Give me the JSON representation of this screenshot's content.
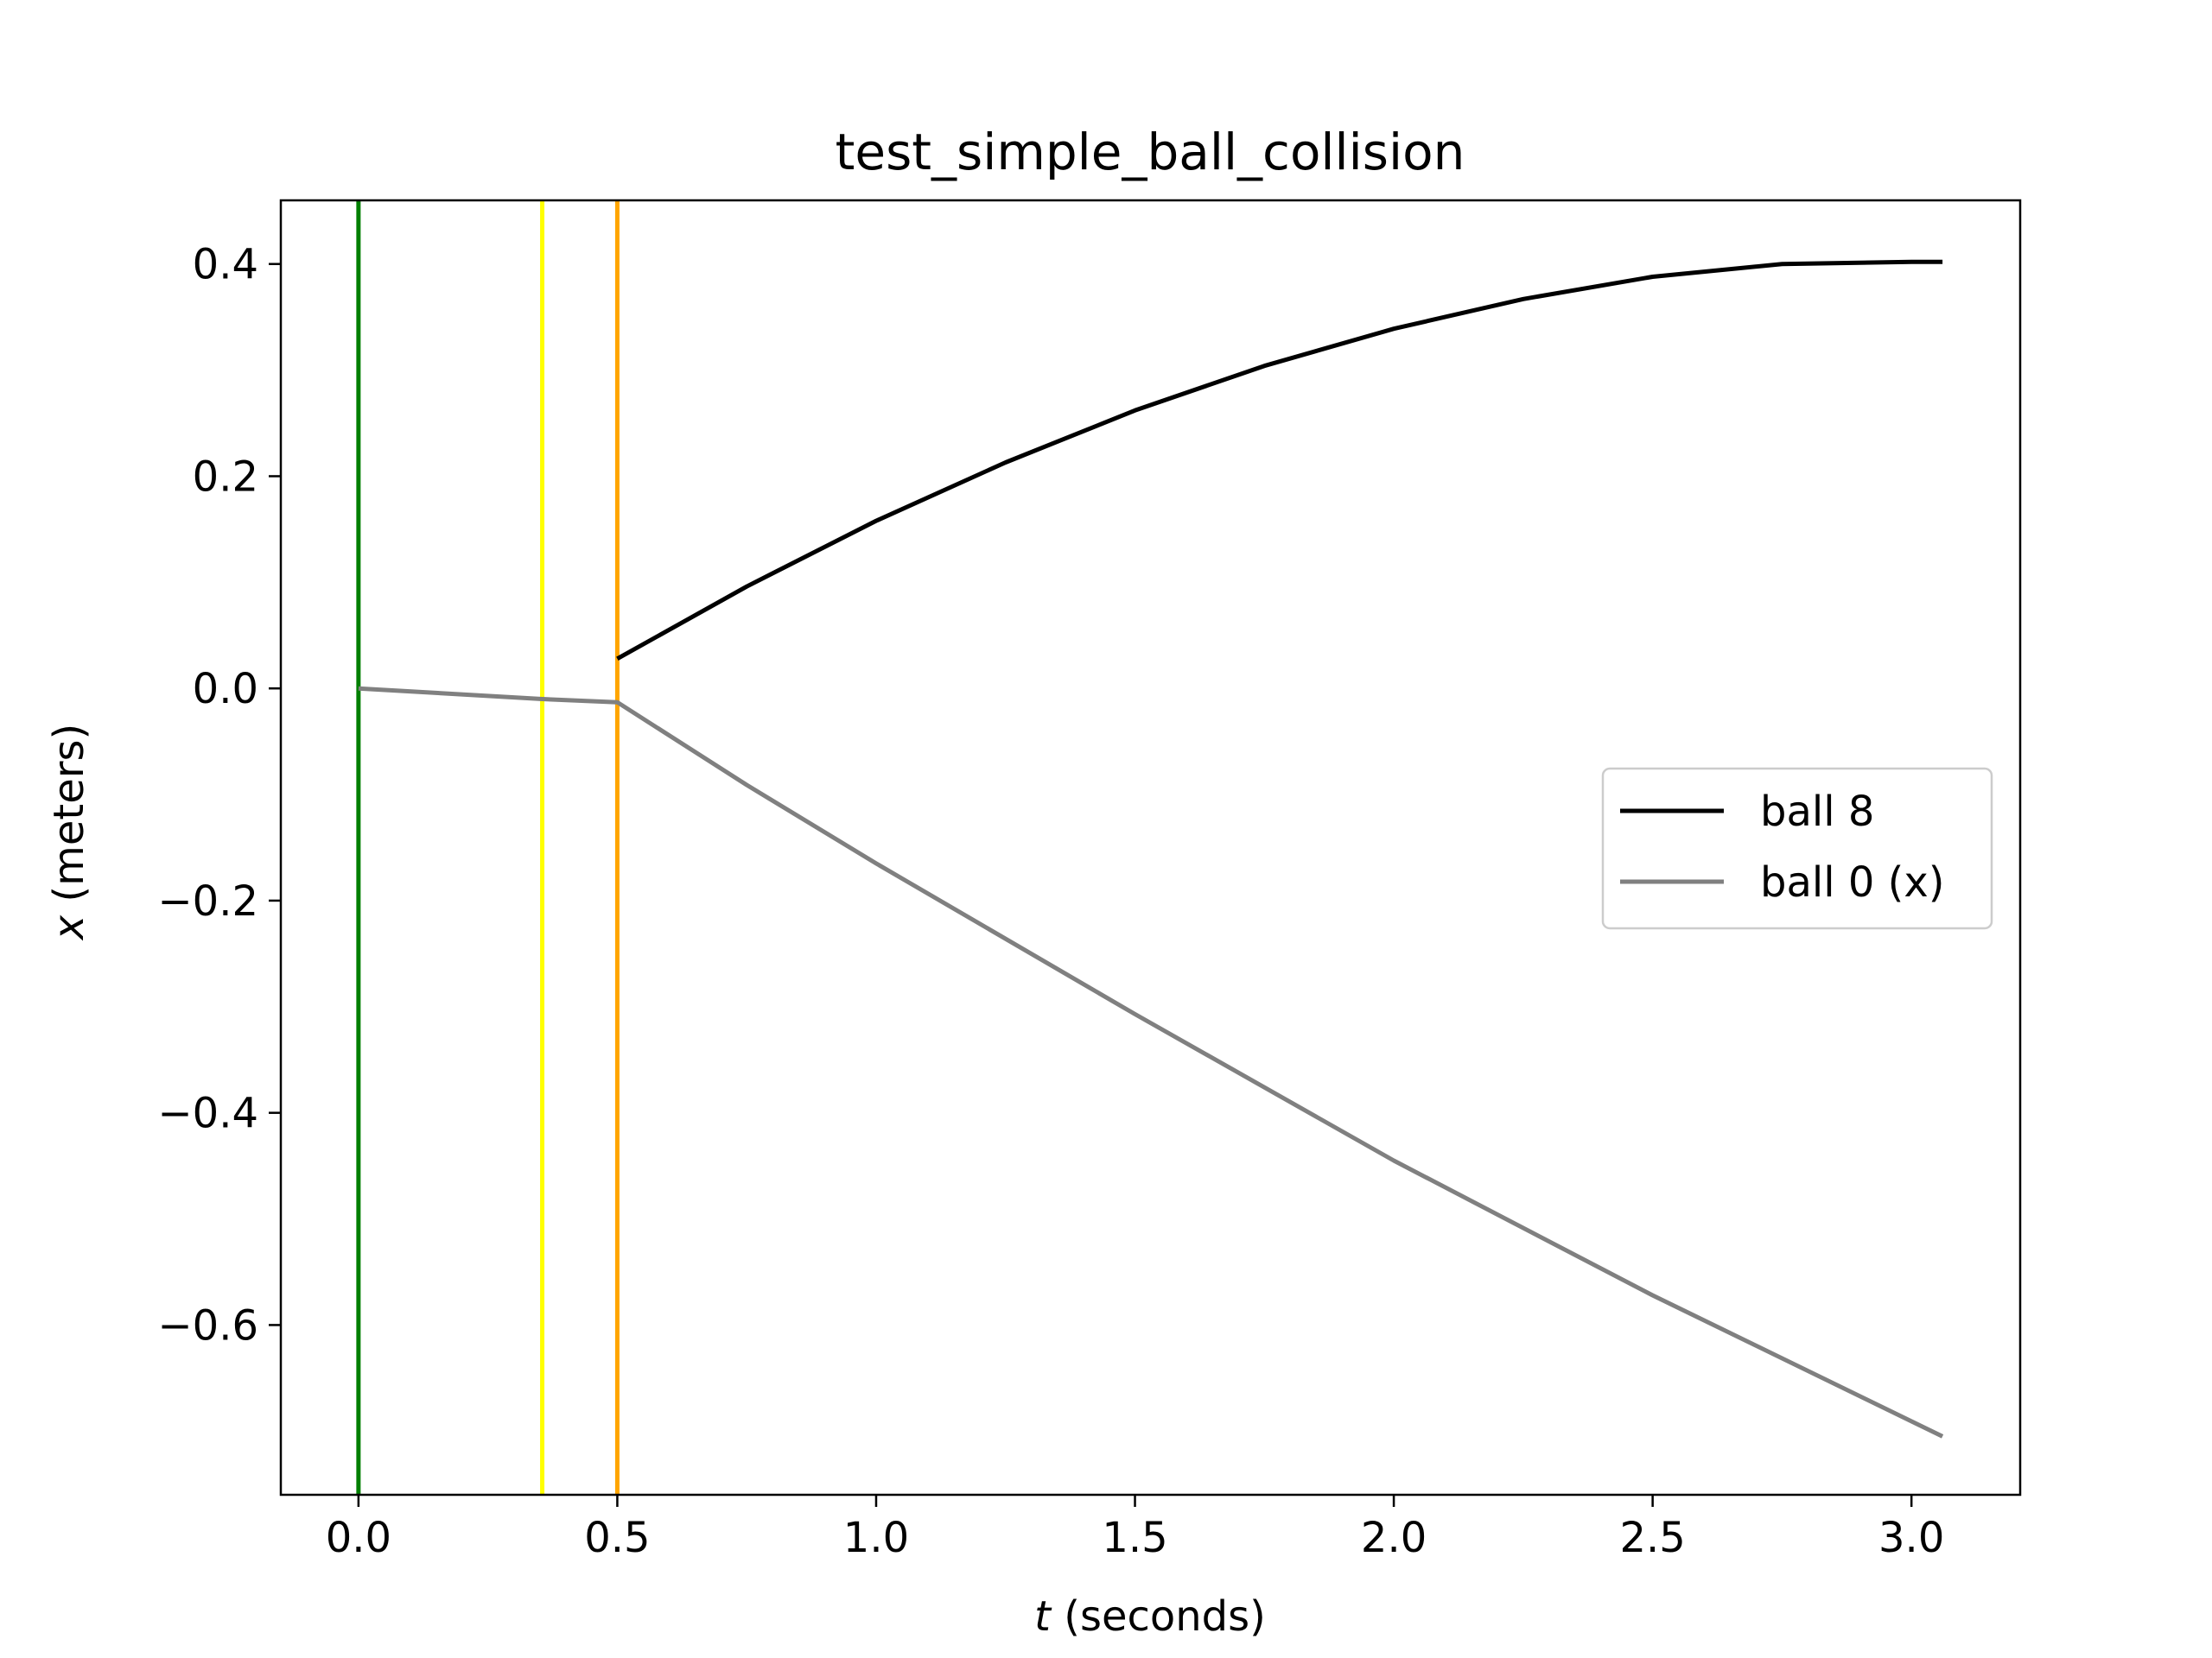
{
  "chart_data": {
    "type": "line",
    "title": "test_simple_ball_collision",
    "xlabel_var": "t",
    "xlabel_rest": " (seconds)",
    "ylabel_var": "x",
    "ylabel_rest": " (meters)",
    "xlim": [
      -0.15,
      3.21
    ],
    "ylim": [
      -0.76,
      0.46
    ],
    "xticks": [
      0.0,
      0.5,
      1.0,
      1.5,
      2.0,
      2.5,
      3.0
    ],
    "xtick_labels": [
      "0.0",
      "0.5",
      "1.0",
      "1.5",
      "2.0",
      "2.5",
      "3.0"
    ],
    "yticks": [
      0.4,
      0.2,
      0.0,
      -0.2,
      -0.4,
      -0.6
    ],
    "ytick_labels": [
      "0.4",
      "0.2",
      "0.0",
      "−0.2",
      "−0.4",
      "−0.6"
    ],
    "grid": false,
    "legend_position": "center-right",
    "vlines": [
      {
        "x": 0.0,
        "color": "#007f00"
      },
      {
        "x": 0.355,
        "color": "#ffff00"
      },
      {
        "x": 0.5,
        "color": "#ffa500"
      }
    ],
    "series": [
      {
        "name": "ball 8",
        "color": "#000000",
        "x": [
          0.5,
          0.75,
          1.0,
          1.25,
          1.5,
          1.75,
          2.0,
          2.25,
          2.5,
          2.75,
          3.0,
          3.06
        ],
        "y": [
          0.028,
          0.096,
          0.158,
          0.213,
          0.262,
          0.304,
          0.339,
          0.367,
          0.388,
          0.4,
          0.402,
          0.402
        ]
      },
      {
        "name": "ball 0 (x)",
        "color": "#808080",
        "x": [
          0.0,
          0.355,
          0.5,
          0.75,
          1.0,
          1.5,
          2.0,
          2.5,
          3.06
        ],
        "y": [
          0.0,
          -0.01,
          -0.013,
          -0.091,
          -0.165,
          -0.307,
          -0.445,
          -0.572,
          -0.705
        ]
      }
    ]
  }
}
